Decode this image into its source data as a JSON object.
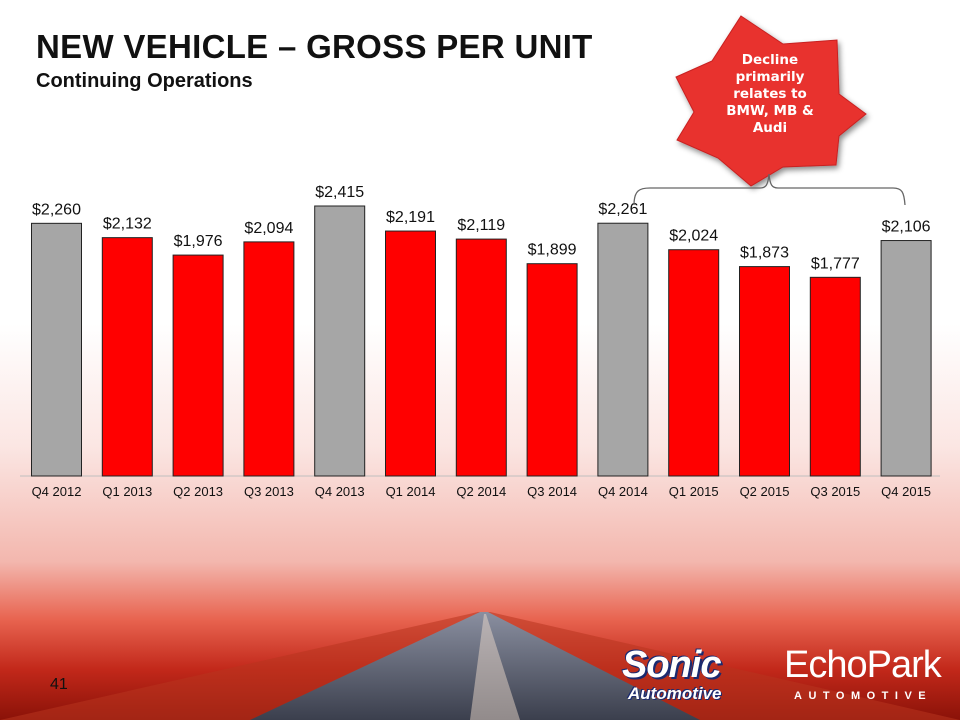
{
  "slide": {
    "title": "NEW VEHICLE – GROSS PER UNIT",
    "subtitle": "Continuing Operations",
    "page_number": "41",
    "callout": {
      "lines": [
        "Decline",
        "primarily",
        "relates to",
        "BMW, MB &",
        "Audi"
      ],
      "color": "#e8312f"
    },
    "logos": {
      "sonic_word": "Sonic",
      "sonic_sub": "Automotive",
      "echo_word": "EchoPark",
      "echo_sub": "AUTOMOTIVE"
    }
  },
  "chart_data": {
    "type": "bar",
    "categories": [
      "Q4 2012",
      "Q1 2013",
      "Q2 2013",
      "Q3 2013",
      "Q4 2013",
      "Q1 2014",
      "Q2 2014",
      "Q3 2014",
      "Q4 2014",
      "Q1 2015",
      "Q2 2015",
      "Q3 2015",
      "Q4 2015"
    ],
    "values": [
      2260,
      2132,
      1976,
      2094,
      2415,
      2191,
      2119,
      1899,
      2261,
      2024,
      1873,
      1777,
      2106
    ],
    "labels": [
      "$2,260",
      "$2,132",
      "$1,976",
      "$2,094",
      "$2,415",
      "$2,191",
      "$2,119",
      "$1,899",
      "$2,261",
      "$2,024",
      "$1,873",
      "$1,777",
      "$2,106"
    ],
    "bar_colors": [
      "#a6a6a6",
      "#ff0000",
      "#ff0000",
      "#ff0000",
      "#a6a6a6",
      "#ff0000",
      "#ff0000",
      "#ff0000",
      "#a6a6a6",
      "#ff0000",
      "#ff0000",
      "#ff0000",
      "#a6a6a6"
    ],
    "ylim": [
      0,
      2415
    ],
    "grid": false,
    "colors": {
      "highlight": "#a6a6a6",
      "main": "#ff0000"
    }
  }
}
